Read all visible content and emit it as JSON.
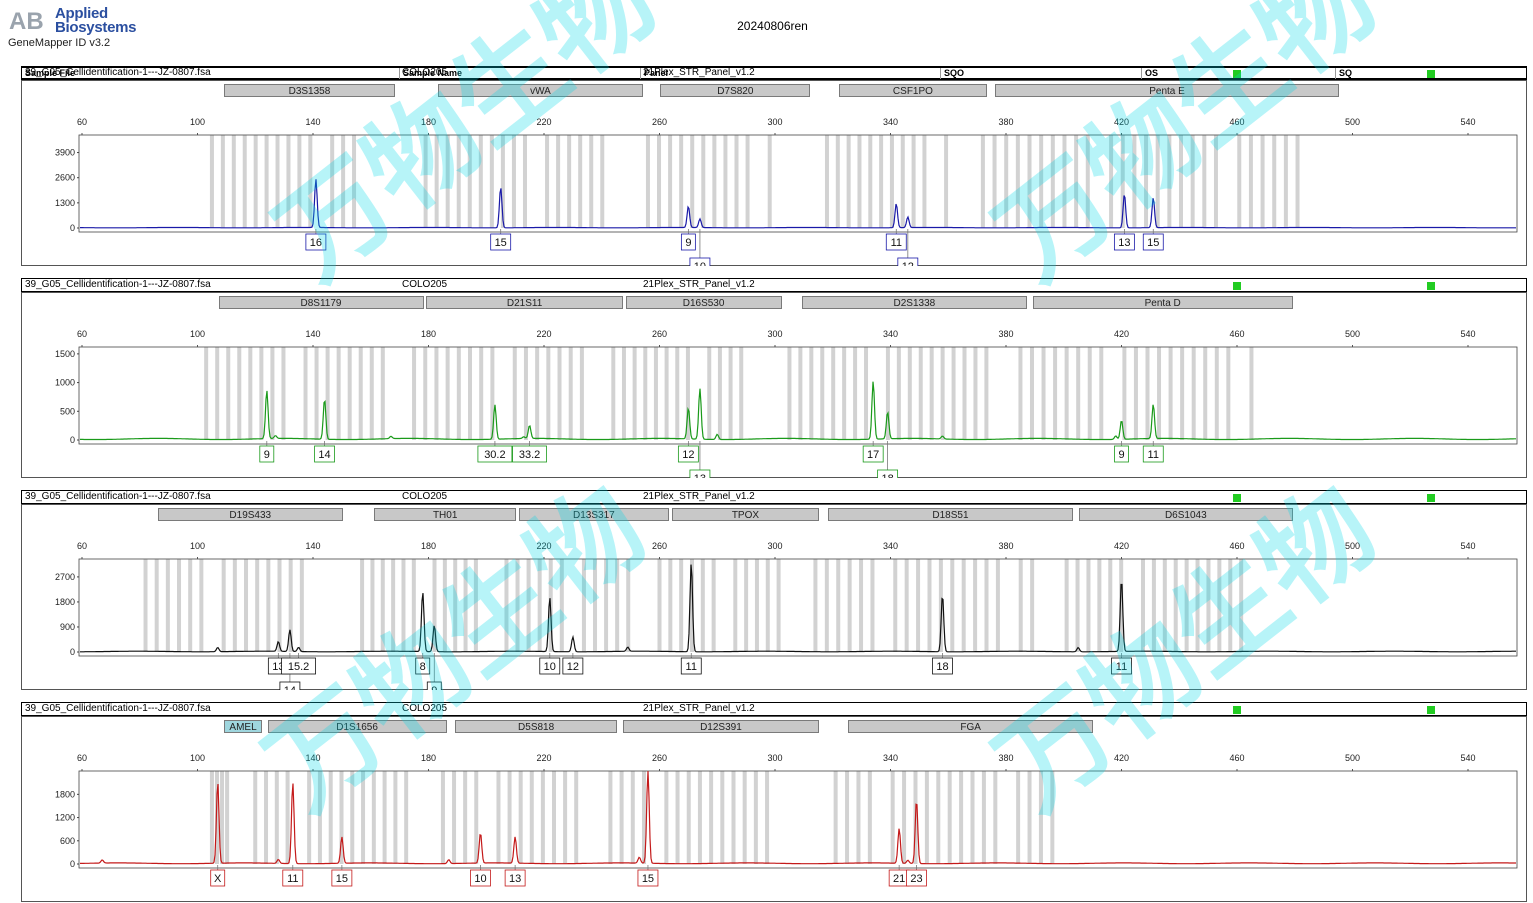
{
  "header": {
    "brand_line1": "Applied",
    "brand_line2": "Biosystems",
    "app_name": "GeneMapper ID v3.2",
    "run_name": "20240806ren",
    "logo_mark": "AB"
  },
  "columns": {
    "sample_file": "Sample File",
    "sample_name": "Sample Name",
    "panel": "Panel",
    "sqo": "SQO",
    "os": "OS",
    "sq": "SQ"
  },
  "colors": {
    "qc_pass": "#22cc22",
    "bin": "#d2d2d2",
    "watermark": "#00d8e8"
  },
  "watermark_text": "万物生物",
  "x_axis": {
    "ticks": [
      60,
      100,
      140,
      180,
      220,
      260,
      300,
      340,
      380,
      420,
      460,
      500,
      540
    ]
  },
  "panels": [
    {
      "sample_file": "39_G05_Cellidentification-1---JZ-0807.fsa",
      "sample_name": "COLO205",
      "panel": "21Plex_STR_Panel_v1.2",
      "color": "#1a1aa8",
      "loci": [
        {
          "name": "D3S1358",
          "start": 102,
          "end": 161
        },
        {
          "name": "vWA",
          "start": 176,
          "end": 247
        },
        {
          "name": "D7S820",
          "start": 253,
          "end": 305
        },
        {
          "name": "CSF1PO",
          "start": 315,
          "end": 366
        },
        {
          "name": "Penta E",
          "start": 369,
          "end": 488
        }
      ],
      "yticks": [
        0,
        1300,
        2600,
        3900
      ],
      "ymax": 4600,
      "peaks": [
        [
          141,
          2500
        ],
        [
          205,
          2100
        ],
        [
          270,
          1100
        ],
        [
          274,
          450
        ],
        [
          342,
          1250
        ],
        [
          346,
          550
        ],
        [
          421,
          1750
        ],
        [
          431,
          1550
        ]
      ],
      "labels": [
        {
          "x": 141,
          "text": "16",
          "row": 1
        },
        {
          "x": 205,
          "text": "15",
          "row": 1
        },
        {
          "x": 270,
          "text": "9",
          "row": 1
        },
        {
          "x": 274,
          "text": "10",
          "row": 2
        },
        {
          "x": 342,
          "text": "11",
          "row": 1
        },
        {
          "x": 346,
          "text": "12",
          "row": 2
        },
        {
          "x": 421,
          "text": "13",
          "row": 1
        },
        {
          "x": 431,
          "text": "15",
          "row": 1
        }
      ]
    },
    {
      "sample_file": "39_G05_Cellidentification-1---JZ-0807.fsa",
      "sample_name": "COLO205",
      "panel": "21Plex_STR_Panel_v1.2",
      "color": "#1a9a1a",
      "loci": [
        {
          "name": "D8S1179",
          "start": 100,
          "end": 171
        },
        {
          "name": "D21S11",
          "start": 172,
          "end": 240
        },
        {
          "name": "D16S530",
          "start": 241,
          "end": 295
        },
        {
          "name": "D2S1338",
          "start": 302,
          "end": 380
        },
        {
          "name": "Penta D",
          "start": 382,
          "end": 472
        }
      ],
      "yticks": [
        0,
        500,
        1000,
        1500
      ],
      "ymax": 1550,
      "peaks": [
        [
          124,
          840
        ],
        [
          144,
          700
        ],
        [
          127,
          50
        ],
        [
          167,
          40
        ],
        [
          203,
          600
        ],
        [
          213,
          30
        ],
        [
          215,
          230
        ],
        [
          270,
          540
        ],
        [
          274,
          880
        ],
        [
          280,
          90
        ],
        [
          334,
          1010
        ],
        [
          339,
          470
        ],
        [
          358,
          50
        ],
        [
          420,
          330
        ],
        [
          431,
          600
        ],
        [
          418,
          60
        ]
      ],
      "labels": [
        {
          "x": 124,
          "text": "9",
          "row": 1
        },
        {
          "x": 144,
          "text": "14",
          "row": 1
        },
        {
          "x": 203,
          "text": "30.2",
          "row": 1
        },
        {
          "x": 215,
          "text": "33.2",
          "row": 1
        },
        {
          "x": 270,
          "text": "12",
          "row": 1
        },
        {
          "x": 274,
          "text": "13",
          "row": 2
        },
        {
          "x": 334,
          "text": "17",
          "row": 1
        },
        {
          "x": 339,
          "text": "18",
          "row": 2
        },
        {
          "x": 420,
          "text": "9",
          "row": 1
        },
        {
          "x": 431,
          "text": "11",
          "row": 1
        }
      ]
    },
    {
      "sample_file": "39_G05_Cellidentification-1---JZ-0807.fsa",
      "sample_name": "COLO205",
      "panel": "21Plex_STR_Panel_v1.2",
      "color": "#111111",
      "loci": [
        {
          "name": "D19S433",
          "start": 79,
          "end": 143
        },
        {
          "name": "TH01",
          "start": 154,
          "end": 203
        },
        {
          "name": "D13S317",
          "start": 204,
          "end": 256
        },
        {
          "name": "TPOX",
          "start": 257,
          "end": 308
        },
        {
          "name": "D18S51",
          "start": 311,
          "end": 396
        },
        {
          "name": "D6S1043",
          "start": 398,
          "end": 472
        }
      ],
      "yticks": [
        0,
        900,
        1800,
        2700
      ],
      "ymax": 3200,
      "peaks": [
        [
          128,
          350
        ],
        [
          132,
          780
        ],
        [
          135,
          150
        ],
        [
          178,
          2150
        ],
        [
          182,
          950
        ],
        [
          222,
          1950
        ],
        [
          230,
          530
        ],
        [
          249,
          150
        ],
        [
          271,
          3200
        ],
        [
          358,
          2050
        ],
        [
          420,
          2600
        ],
        [
          107,
          150
        ],
        [
          405,
          150
        ]
      ],
      "labels": [
        {
          "x": 128,
          "text": "13",
          "row": 1
        },
        {
          "x": 132,
          "text": "14",
          "row": 2
        },
        {
          "x": 135,
          "text": "15.2",
          "row": 1
        },
        {
          "x": 178,
          "text": "8",
          "row": 1
        },
        {
          "x": 182,
          "text": "9",
          "row": 2
        },
        {
          "x": 222,
          "text": "10",
          "row": 1
        },
        {
          "x": 230,
          "text": "12",
          "row": 1
        },
        {
          "x": 271,
          "text": "11",
          "row": 1
        },
        {
          "x": 358,
          "text": "18",
          "row": 1
        },
        {
          "x": 420,
          "text": "11",
          "row": 1
        }
      ]
    },
    {
      "sample_file": "39_G05_Cellidentification-1---JZ-0807.fsa",
      "sample_name": "COLO205",
      "panel": "21Plex_STR_Panel_v1.2",
      "color": "#c41a1a",
      "loci": [
        {
          "name": "AMEL",
          "start": 102,
          "end": 115,
          "amel": true
        },
        {
          "name": "D1S1656",
          "start": 117,
          "end": 179
        },
        {
          "name": "D5S818",
          "start": 182,
          "end": 238
        },
        {
          "name": "D12S391",
          "start": 240,
          "end": 308
        },
        {
          "name": "FGA",
          "start": 318,
          "end": 403
        }
      ],
      "yticks": [
        0,
        600,
        1200,
        1800
      ],
      "ymax": 2300,
      "peaks": [
        [
          107,
          2100
        ],
        [
          133,
          2100
        ],
        [
          150,
          680
        ],
        [
          198,
          780
        ],
        [
          210,
          680
        ],
        [
          256,
          2400
        ],
        [
          343,
          900
        ],
        [
          349,
          1650
        ],
        [
          128,
          100
        ],
        [
          67,
          80
        ],
        [
          187,
          100
        ],
        [
          253,
          150
        ],
        [
          346,
          80
        ]
      ],
      "labels": [
        {
          "x": 107,
          "text": "X",
          "row": 1
        },
        {
          "x": 133,
          "text": "11",
          "row": 1
        },
        {
          "x": 150,
          "text": "15",
          "row": 1
        },
        {
          "x": 198,
          "text": "10",
          "row": 1
        },
        {
          "x": 210,
          "text": "13",
          "row": 1
        },
        {
          "x": 256,
          "text": "15",
          "row": 1
        },
        {
          "x": 343,
          "text": "21",
          "row": 1
        },
        {
          "x": 349,
          "text": "23",
          "row": 1
        }
      ]
    }
  ]
}
